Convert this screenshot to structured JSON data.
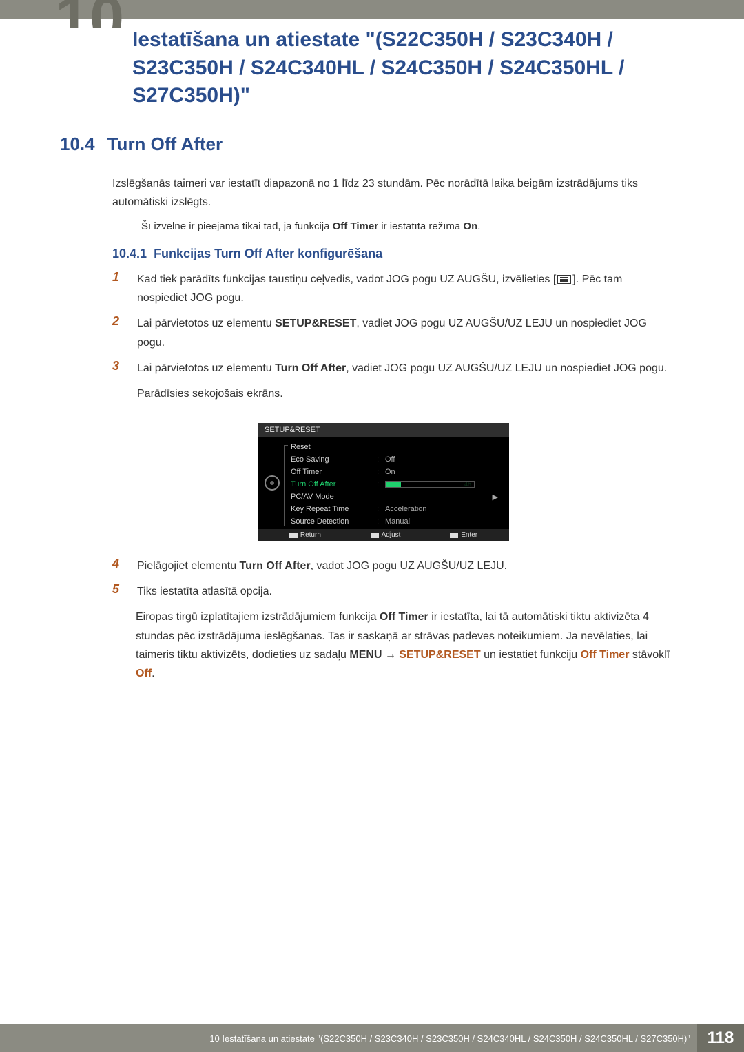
{
  "chapter_num_frag": "10",
  "chapter_title": "Iestatīšana un atiestate \"(S22C350H / S23C340H / S23C350H / S24C340HL / S24C350H / S24C350HL / S27C350H)\"",
  "section": {
    "num": "10.4",
    "title": "Turn Off After"
  },
  "intro": "Izslēgšanās taimeri var iestatīt diapazonā no 1 līdz 23 stundām. Pēc norādītā laika beigām izstrādājums tiks automātiski izslēgts.",
  "note1_a": "Šī izvēlne ir pieejama tikai tad, ja funkcija ",
  "note1_b": "Off Timer",
  "note1_c": " ir iestatīta režīmā ",
  "note1_d": "On",
  "note1_e": ".",
  "subsection": {
    "num": "10.4.1",
    "title": "Funkcijas Turn Off After konfigurēšana"
  },
  "step1_a": "Kad tiek parādīts funkcijas taustiņu ceļvedis, vadot JOG pogu UZ AUGŠU, izvēlieties [",
  "step1_b": "]. Pēc tam nospiediet JOG pogu.",
  "step2_a": "Lai pārvietotos uz elementu ",
  "step2_b": "SETUP&RESET",
  "step2_c": ", vadiet JOG pogu UZ AUGŠU/UZ LEJU un nospiediet JOG pogu.",
  "step3_a": "Lai pārvietotos uz elementu ",
  "step3_b": "Turn Off After",
  "step3_c": ", vadiet JOG pogu UZ AUGŠU/UZ LEJU un nospiediet JOG pogu.",
  "step3_d": "Parādīsies sekojošais ekrāns.",
  "osd": {
    "header": "SETUP&RESET",
    "rows": [
      {
        "label": "Reset",
        "value": ""
      },
      {
        "label": "Eco Saving",
        "value": "Off"
      },
      {
        "label": "Off Timer",
        "value": "On"
      },
      {
        "label": "Turn Off After",
        "value": "4h",
        "active": true,
        "fill_pct": 17
      },
      {
        "label": "PC/AV Mode",
        "value": "",
        "arrow": true
      },
      {
        "label": "Key Repeat Time",
        "value": "Acceleration"
      },
      {
        "label": "Source Detection",
        "value": "Manual"
      }
    ],
    "footer": {
      "return": "Return",
      "adjust": "Adjust",
      "enter": "Enter"
    }
  },
  "step4_a": "Pielāgojiet elementu ",
  "step4_b": "Turn Off After",
  "step4_c": ", vadot JOG pogu UZ AUGŠU/UZ LEJU.",
  "step5": "Tiks iestatīta atlasītā opcija.",
  "note2_a": "Eiropas tirgū izplatītajiem izstrādājumiem funkcija ",
  "note2_b": "Off Timer",
  "note2_c": " ir iestatīta, lai tā automātiski tiktu aktivizēta 4 stundas pēc izstrādājuma ieslēgšanas. Tas ir saskaņā ar strāvas padeves noteikumiem. Ja nevēlaties, lai taimeris tiktu aktivizēts, dodieties uz sadaļu ",
  "note2_d": "MENU",
  "note2_e": "SETUP&RESET",
  "note2_f": " un iestatiet funkciju ",
  "note2_g": "Off Timer",
  "note2_h": " stāvoklī ",
  "note2_i": "Off",
  "note2_j": ".",
  "footer": {
    "text": "10 Iestatīšana un atiestate \"(S22C350H / S23C340H / S23C350H / S24C340HL / S24C350H / S24C350HL / S27C350H)\"",
    "page": "118"
  },
  "colors": {
    "header_bar": "#8b8b82",
    "chapter_num": "#6e6e64",
    "heading_blue": "#2a4d8c",
    "accent_orange": "#b25820",
    "osd_active_green": "#1fcf6d"
  }
}
